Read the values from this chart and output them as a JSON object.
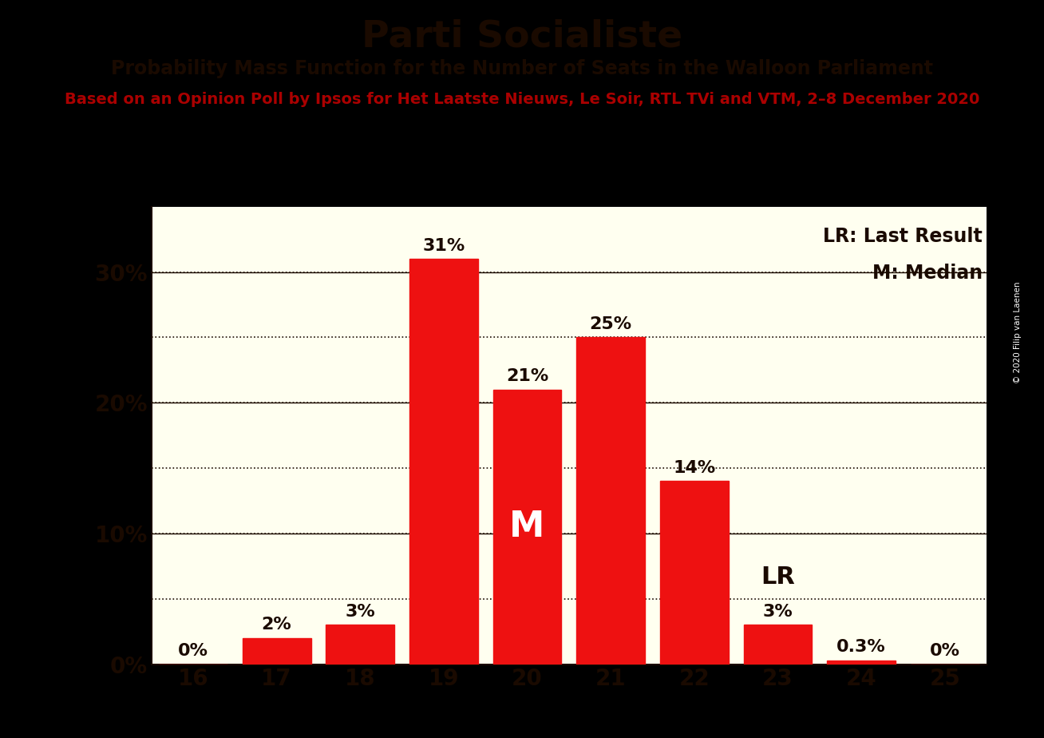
{
  "title": "Parti Socialiste",
  "subtitle": "Probability Mass Function for the Number of Seats in the Walloon Parliament",
  "source_line": "Based on an Opinion Poll by Ipsos for Het Laatste Nieuws, Le Soir, RTL TVi and VTM, 2–8 December 2020",
  "copyright": "© 2020 Filip van Laenen",
  "categories": [
    16,
    17,
    18,
    19,
    20,
    21,
    22,
    23,
    24,
    25
  ],
  "values": [
    0.0,
    2.0,
    3.0,
    31.0,
    21.0,
    25.0,
    14.0,
    3.0,
    0.3,
    0.0
  ],
  "bar_color": "#ee1111",
  "background_color": "#fffff0",
  "outer_background": "#000000",
  "label_texts": [
    "0%",
    "2%",
    "3%",
    "31%",
    "21%",
    "25%",
    "14%",
    "3%",
    "0.3%",
    "0%"
  ],
  "median_seat": 20,
  "last_result_seat": 23,
  "median_label": "M",
  "lr_label": "LR",
  "legend_lr": "LR: Last Result",
  "legend_m": "M: Median",
  "ytick_positions": [
    0,
    10,
    20,
    30
  ],
  "ytick_labels": [
    "0%",
    "10%",
    "20%",
    "30%"
  ],
  "grid_lines": [
    5,
    10,
    15,
    20,
    25,
    30
  ],
  "ymax": 35,
  "title_fontsize": 34,
  "subtitle_fontsize": 17,
  "source_fontsize": 14,
  "bar_label_fontsize": 16,
  "axis_tick_fontsize": 20,
  "legend_fontsize": 17,
  "median_label_fontsize": 32,
  "lr_label_fontsize": 22,
  "text_color": "#1a0a00",
  "source_color": "#aa0000",
  "copyright_color": "#1a0a00"
}
